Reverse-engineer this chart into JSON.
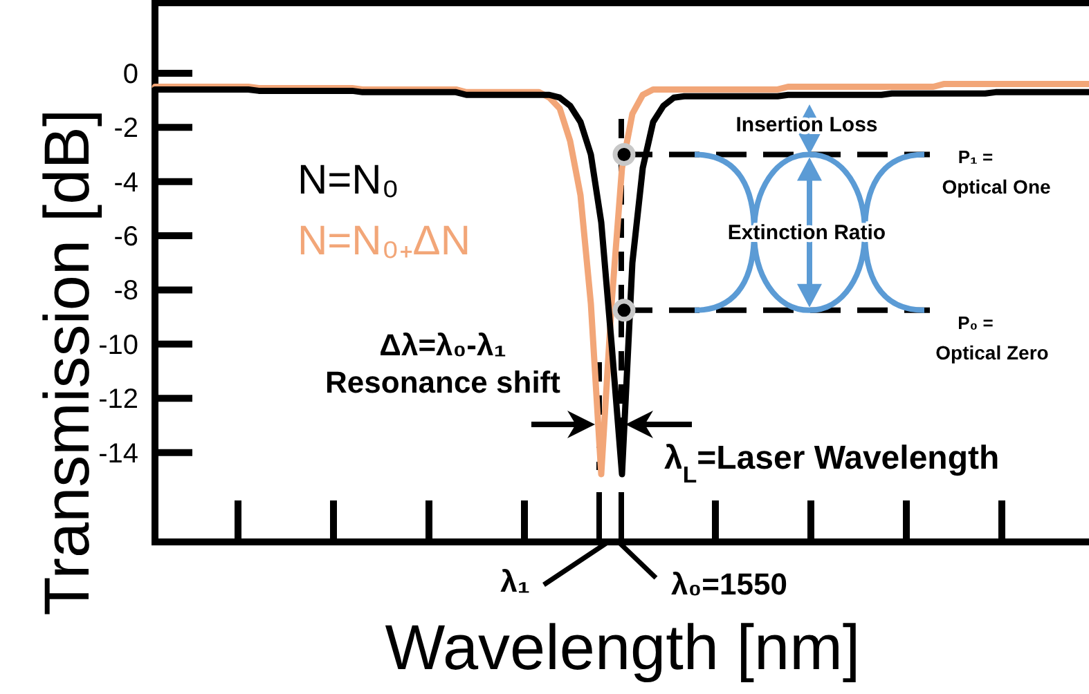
{
  "chart_data": {
    "type": "line",
    "xlabel": "Wavelength [nm]",
    "ylabel": "Transmission [dB]",
    "categories": [
      null,
      null,
      null,
      null,
      null,
      null,
      null,
      null,
      null,
      null,
      null,
      null,
      null,
      null,
      null,
      null,
      null,
      null,
      null,
      null,
      null,
      null,
      null,
      null,
      null,
      null,
      null,
      null,
      null,
      null,
      null,
      null,
      null,
      null,
      null,
      null,
      null,
      null,
      null,
      null,
      null,
      null,
      null,
      null,
      null,
      null,
      null,
      null,
      null,
      null,
      null,
      null,
      null,
      null,
      null,
      null,
      null,
      null,
      null,
      null,
      null,
      null,
      null,
      null,
      null,
      null,
      null,
      null,
      null,
      null,
      null,
      null,
      null,
      null,
      null,
      null,
      null,
      null,
      null,
      null,
      null,
      null,
      null,
      null,
      null,
      null,
      null,
      null,
      null,
      null,
      null
    ],
    "ylim": [
      -17.3,
      2.6
    ],
    "yticks": [
      0,
      -2,
      -4,
      -6,
      -8,
      -10,
      -12,
      -14
    ],
    "series": [
      {
        "name": "N=N₀",
        "color": "#000000",
        "values": [
          -0.6,
          -0.6,
          -0.6,
          -0.6,
          -0.6,
          -0.6,
          -0.6,
          -0.6,
          -0.6,
          -0.6,
          -0.65,
          -0.65,
          -0.65,
          -0.65,
          -0.65,
          -0.65,
          -0.65,
          -0.65,
          -0.65,
          -0.65,
          -0.7,
          -0.7,
          -0.7,
          -0.7,
          -0.7,
          -0.7,
          -0.7,
          -0.7,
          -0.7,
          -0.7,
          -0.8,
          -0.8,
          -0.8,
          -0.8,
          -0.8,
          -0.8,
          -0.8,
          -0.8,
          -0.8,
          -0.9,
          -1.2,
          -1.8,
          -3,
          -5.5,
          -10,
          -14.8,
          -7,
          -3.5,
          -1.8,
          -1.2,
          -0.9,
          -0.85,
          -0.85,
          -0.85,
          -0.85,
          -0.85,
          -0.85,
          -0.85,
          -0.85,
          -0.85,
          -0.85,
          -0.8,
          -0.8,
          -0.8,
          -0.8,
          -0.8,
          -0.8,
          -0.8,
          -0.8,
          -0.8,
          -0.8,
          -0.75,
          -0.75,
          -0.75,
          -0.75,
          -0.75,
          -0.75,
          -0.75,
          -0.75,
          -0.75,
          -0.75,
          -0.7,
          -0.7,
          -0.7,
          -0.7,
          -0.7,
          -0.7,
          -0.7,
          -0.7,
          -0.7,
          -0.7
        ]
      },
      {
        "name": "N=N₀₊ΔN",
        "color": "#f2a678",
        "values": [
          -0.5,
          -0.5,
          -0.5,
          -0.5,
          -0.5,
          -0.5,
          -0.5,
          -0.5,
          -0.5,
          -0.5,
          -0.55,
          -0.55,
          -0.55,
          -0.55,
          -0.55,
          -0.55,
          -0.55,
          -0.55,
          -0.55,
          -0.55,
          -0.6,
          -0.6,
          -0.6,
          -0.6,
          -0.6,
          -0.6,
          -0.6,
          -0.6,
          -0.6,
          -0.6,
          -0.7,
          -0.7,
          -0.7,
          -0.7,
          -0.7,
          -0.7,
          -0.7,
          -0.7,
          -0.9,
          -1.3,
          -2.5,
          -4.5,
          -8.5,
          -14.8,
          -8.5,
          -3.5,
          -1.5,
          -0.8,
          -0.6,
          -0.6,
          -0.6,
          -0.6,
          -0.6,
          -0.6,
          -0.6,
          -0.6,
          -0.6,
          -0.6,
          -0.6,
          -0.6,
          -0.6,
          -0.5,
          -0.5,
          -0.5,
          -0.5,
          -0.5,
          -0.5,
          -0.5,
          -0.5,
          -0.5,
          -0.5,
          -0.5,
          -0.5,
          -0.5,
          -0.5,
          -0.5,
          -0.4,
          -0.4,
          -0.4,
          -0.4,
          -0.4,
          -0.4,
          -0.4,
          -0.4,
          -0.4,
          -0.4,
          -0.4,
          -0.4,
          -0.4,
          -0.4,
          -0.4
        ]
      }
    ],
    "ref_lines": [
      {
        "axis": "y",
        "value": -3,
        "color": "#000000",
        "line_style": "dashed"
      },
      {
        "axis": "y",
        "value": -8.75,
        "color": "#000000",
        "line_style": "dashed"
      }
    ],
    "legend": "left",
    "grid": false,
    "marker": "none",
    "line_style": "solid",
    "annotations": [
      "Δλ=λ₀-λ₁",
      "Resonance shift",
      "λ$_{L}$=Laser Wavelength",
      "λ₁",
      "λ₀=1550",
      "Insertion Loss",
      "Extinction Ratio",
      "P₁ =",
      "Optical One",
      "P₀ =",
      "Optical Zero"
    ]
  }
}
